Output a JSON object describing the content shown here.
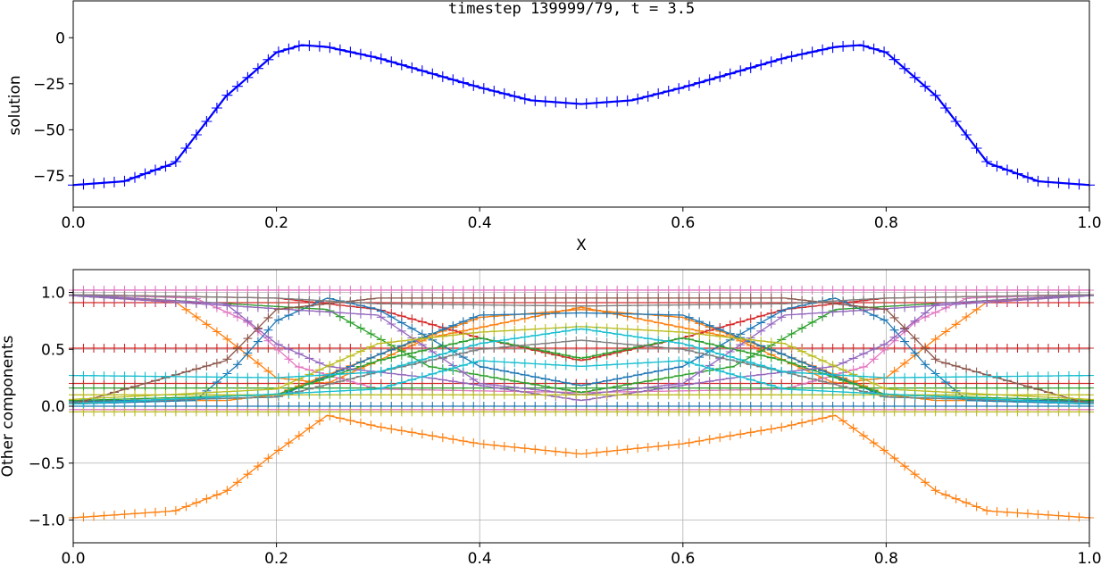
{
  "chart_data": [
    {
      "type": "line",
      "title": "timestep 139999/79, t = 3.5",
      "xlabel": "X",
      "ylabel": "solution",
      "xlim": [
        0.0,
        1.0
      ],
      "ylim": [
        -92,
        20
      ],
      "xticks": [
        "0.0",
        "0.2",
        "0.4",
        "0.6",
        "0.8",
        "1.0"
      ],
      "yticks": [
        "0",
        "−25",
        "−50",
        "−75"
      ],
      "grid": false,
      "series": [
        {
          "color": "#0000ff",
          "marker": "+",
          "x": [
            0.0,
            0.05,
            0.1,
            0.15,
            0.2,
            0.225,
            0.25,
            0.3,
            0.35,
            0.4,
            0.45,
            0.5,
            0.55,
            0.6,
            0.65,
            0.7,
            0.75,
            0.775,
            0.8,
            0.85,
            0.9,
            0.95,
            1.0
          ],
          "values": [
            -80,
            -78,
            -68,
            -32,
            -8,
            -4,
            -5,
            -11,
            -19,
            -27,
            -34,
            -36,
            -34,
            -27,
            -19,
            -11,
            -5,
            -4,
            -8,
            -32,
            -68,
            -78,
            -80
          ]
        }
      ]
    },
    {
      "type": "line",
      "xlabel": "",
      "ylabel": "Other components",
      "xlim": [
        0.0,
        1.0
      ],
      "ylim": [
        -1.2,
        1.2
      ],
      "xticks": [
        "0.0",
        "0.2",
        "0.4",
        "0.6",
        "0.8",
        "1.0"
      ],
      "yticks": [
        "1.0",
        "0.5",
        "0.0",
        "−0.5",
        "−1.0"
      ],
      "grid": true,
      "series": [
        {
          "color": "#ff7f0e",
          "x": [
            0,
            0.1,
            0.15,
            0.2,
            0.25,
            0.3,
            0.4,
            0.5,
            0.6,
            0.7,
            0.75,
            0.8,
            0.85,
            0.9,
            1.0
          ],
          "values": [
            -0.98,
            -0.92,
            -0.75,
            -0.4,
            -0.08,
            -0.18,
            -0.33,
            -0.42,
            -0.33,
            -0.18,
            -0.08,
            -0.4,
            -0.75,
            -0.92,
            -0.98
          ]
        },
        {
          "color": "#ff7f0e",
          "x": [
            0,
            0.1,
            0.15,
            0.2,
            0.25,
            0.35,
            0.5,
            0.65,
            0.75,
            0.8,
            0.85,
            0.9,
            1.0
          ],
          "values": [
            0.98,
            0.92,
            0.6,
            0.25,
            0.2,
            0.6,
            0.87,
            0.6,
            0.2,
            0.25,
            0.6,
            0.92,
            0.98
          ]
        },
        {
          "color": "#ff7f0e",
          "x": [
            0,
            0.15,
            0.2,
            0.3,
            0.4,
            0.5,
            0.6,
            0.7,
            0.8,
            0.85,
            1.0
          ],
          "values": [
            0.05,
            0.05,
            0.1,
            0.45,
            0.78,
            0.85,
            0.78,
            0.45,
            0.1,
            0.05,
            0.05
          ]
        },
        {
          "color": "#d62728",
          "x": [
            0,
            1.0
          ],
          "values": [
            0.91,
            0.91
          ]
        },
        {
          "color": "#d62728",
          "x": [
            0,
            1.0
          ],
          "values": [
            0.51,
            0.51
          ]
        },
        {
          "color": "#d62728",
          "x": [
            0,
            1.0
          ],
          "values": [
            0.2,
            0.2
          ]
        },
        {
          "color": "#d62728",
          "x": [
            0,
            0.2,
            0.3,
            0.4,
            0.5,
            0.6,
            0.7,
            0.8,
            1.0
          ],
          "values": [
            0.98,
            0.95,
            0.85,
            0.6,
            0.4,
            0.6,
            0.85,
            0.95,
            0.98
          ]
        },
        {
          "color": "#e377c2",
          "x": [
            0,
            1.0
          ],
          "values": [
            1.02,
            1.02
          ]
        },
        {
          "color": "#e377c2",
          "x": [
            0,
            1.0
          ],
          "values": [
            -0.03,
            -0.03
          ]
        },
        {
          "color": "#e377c2",
          "x": [
            0,
            0.12,
            0.17,
            0.22,
            0.3,
            0.5,
            0.7,
            0.78,
            0.83,
            0.88,
            1.0
          ],
          "values": [
            0.98,
            0.95,
            0.75,
            0.35,
            0.15,
            0.12,
            0.15,
            0.35,
            0.75,
            0.95,
            0.98
          ]
        },
        {
          "color": "#1f77b4",
          "x": [
            0,
            0.12,
            0.16,
            0.2,
            0.25,
            0.3,
            0.4,
            0.5,
            0.6,
            0.7,
            0.75,
            0.8,
            0.84,
            0.88,
            1.0
          ],
          "values": [
            0.02,
            0.05,
            0.35,
            0.75,
            0.95,
            0.85,
            0.35,
            0.18,
            0.35,
            0.85,
            0.95,
            0.75,
            0.35,
            0.05,
            0.02
          ]
        },
        {
          "color": "#1f77b4",
          "x": [
            0,
            0.2,
            0.3,
            0.4,
            0.5,
            0.6,
            0.7,
            0.8,
            1.0
          ],
          "values": [
            0.04,
            0.08,
            0.45,
            0.8,
            0.82,
            0.8,
            0.45,
            0.08,
            0.04
          ]
        },
        {
          "color": "#1f77b4",
          "x": [
            0,
            1.0
          ],
          "values": [
            0.0,
            0.0
          ]
        },
        {
          "color": "#2ca02c",
          "x": [
            0,
            0.2,
            0.3,
            0.4,
            0.5,
            0.6,
            0.7,
            0.8,
            1.0
          ],
          "values": [
            0.05,
            0.1,
            0.4,
            0.6,
            0.42,
            0.6,
            0.4,
            0.1,
            0.05
          ]
        },
        {
          "color": "#2ca02c",
          "x": [
            0,
            0.25,
            0.35,
            0.5,
            0.65,
            0.75,
            1.0
          ],
          "values": [
            0.98,
            0.85,
            0.35,
            0.12,
            0.35,
            0.85,
            0.98
          ]
        },
        {
          "color": "#2ca02c",
          "x": [
            0,
            1.0
          ],
          "values": [
            0.16,
            0.16
          ]
        },
        {
          "color": "#9467bd",
          "x": [
            0,
            0.15,
            0.2,
            0.25,
            0.35,
            0.5,
            0.65,
            0.75,
            0.8,
            0.85,
            1.0
          ],
          "values": [
            0.98,
            0.9,
            0.55,
            0.35,
            0.25,
            0.05,
            0.25,
            0.35,
            0.55,
            0.9,
            0.98
          ]
        },
        {
          "color": "#9467bd",
          "x": [
            0,
            0.3,
            0.4,
            0.5,
            0.6,
            0.7,
            1.0
          ],
          "values": [
            0.97,
            0.8,
            0.2,
            0.1,
            0.2,
            0.8,
            0.97
          ]
        },
        {
          "color": "#8c564b",
          "x": [
            0,
            0.15,
            0.2,
            0.3,
            0.5,
            0.7,
            0.8,
            0.85,
            1.0
          ],
          "values": [
            0.02,
            0.4,
            0.85,
            0.95,
            0.95,
            0.95,
            0.85,
            0.4,
            0.02
          ]
        },
        {
          "color": "#7f7f7f",
          "x": [
            0,
            0.2,
            0.3,
            0.4,
            0.5,
            0.6,
            0.7,
            0.8,
            1.0
          ],
          "values": [
            0.03,
            0.08,
            0.3,
            0.5,
            0.58,
            0.5,
            0.3,
            0.08,
            0.03
          ]
        },
        {
          "color": "#7f7f7f",
          "x": [
            0,
            0.2,
            0.3,
            0.5,
            0.7,
            0.8,
            1.0
          ],
          "values": [
            0.98,
            0.95,
            0.9,
            0.88,
            0.9,
            0.95,
            0.98
          ]
        },
        {
          "color": "#bcbd22",
          "x": [
            0,
            1.0
          ],
          "values": [
            -0.05,
            -0.05
          ]
        },
        {
          "color": "#bcbd22",
          "x": [
            0,
            0.2,
            0.3,
            0.4,
            0.5,
            0.6,
            0.7,
            0.8,
            1.0
          ],
          "values": [
            0.06,
            0.15,
            0.55,
            0.65,
            0.7,
            0.65,
            0.55,
            0.15,
            0.06
          ]
        },
        {
          "color": "#bcbd22",
          "x": [
            0,
            1.0
          ],
          "values": [
            0.1,
            0.1
          ]
        },
        {
          "color": "#17becf",
          "x": [
            0,
            0.2,
            0.3,
            0.4,
            0.5,
            0.6,
            0.7,
            0.8,
            1.0
          ],
          "values": [
            0.27,
            0.25,
            0.3,
            0.55,
            0.68,
            0.55,
            0.3,
            0.25,
            0.27
          ]
        },
        {
          "color": "#17becf",
          "x": [
            0,
            0.3,
            0.4,
            0.5,
            0.6,
            0.7,
            1.0
          ],
          "values": [
            0.02,
            0.15,
            0.4,
            0.35,
            0.4,
            0.15,
            0.02
          ]
        }
      ]
    }
  ]
}
